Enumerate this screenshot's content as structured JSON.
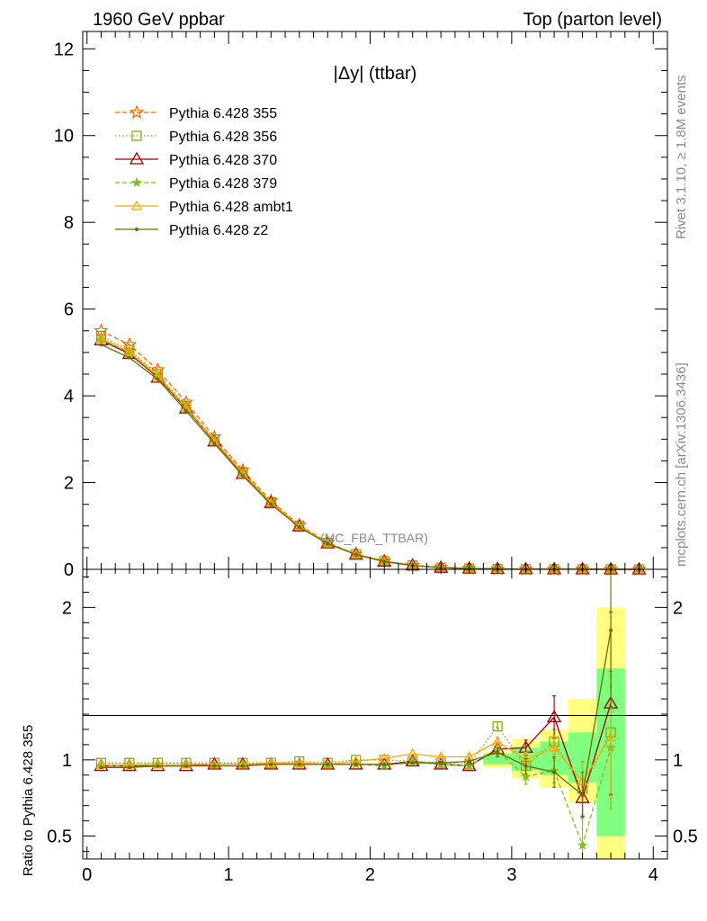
{
  "header": {
    "left": "1960 GeV ppbar",
    "right": "Top (parton level)"
  },
  "side_labels": {
    "rivet": "Rivet 3.1.10, ≥ 1.8M events",
    "mcplots": "mcplots.cern.ch [arXiv:1306.3436]"
  },
  "watermark": "(MC_FBA_TTBAR)",
  "colors": {
    "s355": "#ff6600",
    "s356": "#8ca000",
    "s370": "#9b0000",
    "s379": "#7fbf1f",
    "ambt1": "#ffa500",
    "z2": "#6b6b00",
    "band_inner": "#80ff80",
    "band_outer": "#ffff80"
  },
  "chart_data": {
    "type": "line",
    "title": "|Δy| (ttbar)",
    "xlim": [
      -0.03,
      4.1
    ],
    "x_ticks": [
      "0",
      "1",
      "2",
      "3",
      "4"
    ],
    "main": {
      "ylim": [
        0,
        12.4
      ],
      "y_ticks": [
        "0",
        "2",
        "4",
        "6",
        "8",
        "10",
        "12"
      ],
      "x": [
        0.1,
        0.3,
        0.5,
        0.7,
        0.9,
        1.1,
        1.3,
        1.5,
        1.7,
        1.9,
        2.1,
        2.3,
        2.5,
        2.7,
        2.9,
        3.1,
        3.3,
        3.5,
        3.7,
        3.9
      ],
      "series": [
        {
          "name": "Pythia 6.428 355",
          "key": "s355",
          "marker": "star",
          "dash": "5,3",
          "values": [
            5.5,
            5.18,
            4.6,
            3.85,
            3.05,
            2.28,
            1.58,
            1.02,
            0.62,
            0.35,
            0.19,
            0.09,
            0.04,
            0.02,
            0.01,
            0.005,
            0.003,
            0.002,
            0.001,
            0.0
          ]
        },
        {
          "name": "Pythia 6.428 356",
          "key": "s356",
          "marker": "square",
          "dash": "1.5,2.5",
          "values": [
            5.38,
            5.06,
            4.5,
            3.76,
            2.99,
            2.24,
            1.55,
            1.01,
            0.61,
            0.35,
            0.19,
            0.09,
            0.04,
            0.02,
            0.01,
            0.005,
            0.003,
            0.002,
            0.001,
            0.0
          ]
        },
        {
          "name": "Pythia 6.428 370",
          "key": "s370",
          "marker": "triangle",
          "dash": "",
          "values": [
            5.28,
            4.97,
            4.42,
            3.71,
            2.95,
            2.2,
            1.53,
            0.99,
            0.6,
            0.34,
            0.18,
            0.09,
            0.04,
            0.02,
            0.01,
            0.005,
            0.003,
            0.002,
            0.001,
            0.0
          ]
        },
        {
          "name": "Pythia 6.428 379",
          "key": "s379",
          "marker": "smallstar",
          "dash": "5,3",
          "values": [
            5.3,
            5.0,
            4.44,
            3.72,
            2.96,
            2.21,
            1.53,
            0.99,
            0.6,
            0.34,
            0.18,
            0.09,
            0.04,
            0.02,
            0.01,
            0.005,
            0.003,
            0.002,
            0.001,
            0.0
          ]
        },
        {
          "name": "Pythia 6.428 ambt1",
          "key": "ambt1",
          "marker": "triangle-small",
          "dash": "",
          "values": [
            5.32,
            5.02,
            4.46,
            3.74,
            2.97,
            2.22,
            1.54,
            1.0,
            0.6,
            0.35,
            0.19,
            0.09,
            0.04,
            0.02,
            0.01,
            0.005,
            0.003,
            0.002,
            0.001,
            0.0
          ]
        },
        {
          "name": "Pythia 6.428 z2",
          "key": "z2",
          "marker": "dot",
          "dash": "",
          "values": [
            5.18,
            4.88,
            4.38,
            3.65,
            2.9,
            2.16,
            1.5,
            0.97,
            0.59,
            0.34,
            0.18,
            0.09,
            0.04,
            0.02,
            0.01,
            0.005,
            0.003,
            0.002,
            0.001,
            0.0
          ]
        }
      ]
    },
    "ratio": {
      "ylabel": "Ratio to Pythia 6.428 355",
      "ylim": [
        0.35,
        2.25
      ],
      "y_ticks": [
        "0.5",
        "1",
        "2"
      ],
      "x": [
        0.1,
        0.3,
        0.5,
        0.7,
        0.9,
        1.1,
        1.3,
        1.5,
        1.7,
        1.9,
        2.1,
        2.3,
        2.5,
        2.7,
        2.9,
        3.1,
        3.3,
        3.5,
        3.7
      ],
      "band": {
        "edges": [
          2.8,
          3.0,
          3.2,
          3.4,
          3.6,
          3.8
        ],
        "inner": [
          [
            0.97,
            1.04
          ],
          [
            0.93,
            1.08
          ],
          [
            0.9,
            1.12
          ],
          [
            0.85,
            1.18
          ],
          [
            0.5,
            1.6
          ]
        ],
        "outer": [
          [
            0.95,
            1.06
          ],
          [
            0.88,
            1.14
          ],
          [
            0.82,
            1.2
          ],
          [
            0.72,
            1.4
          ],
          [
            0.33,
            2.0
          ]
        ]
      },
      "series": [
        {
          "key": "s356",
          "values": [
            0.98,
            0.98,
            0.98,
            0.98,
            0.98,
            0.98,
            0.98,
            0.99,
            0.98,
            1.0,
            1.0,
            0.99,
            0.98,
            0.97,
            1.22,
            0.96,
            1.12,
            0.81,
            1.18
          ],
          "err": [
            0,
            0,
            0,
            0,
            0,
            0,
            0,
            0,
            0,
            0,
            0,
            0,
            0.01,
            0.02,
            0.03,
            0.05,
            0.08,
            0.18,
            0.4
          ]
        },
        {
          "key": "s370",
          "values": [
            0.96,
            0.96,
            0.96,
            0.96,
            0.97,
            0.97,
            0.97,
            0.97,
            0.97,
            0.97,
            0.97,
            0.99,
            0.97,
            0.96,
            1.07,
            1.08,
            1.28,
            0.75,
            1.37
          ],
          "err": [
            0,
            0,
            0,
            0,
            0,
            0,
            0,
            0,
            0,
            0,
            0,
            0,
            0.01,
            0.02,
            0.03,
            0.05,
            0.14,
            0.12,
            0.6
          ]
        },
        {
          "key": "s379",
          "values": [
            0.96,
            0.96,
            0.97,
            0.97,
            0.97,
            0.97,
            0.97,
            0.97,
            0.97,
            0.97,
            0.96,
            0.99,
            0.97,
            0.96,
            1.06,
            0.89,
            0.93,
            0.44,
            1.08
          ],
          "err": [
            0,
            0,
            0,
            0,
            0,
            0,
            0,
            0,
            0,
            0,
            0,
            0,
            0.01,
            0.02,
            0.03,
            0.05,
            0.08,
            0.2,
            0.4
          ]
        },
        {
          "key": "ambt1",
          "values": [
            0.97,
            0.97,
            0.97,
            0.97,
            0.97,
            0.97,
            0.98,
            0.98,
            0.97,
            0.99,
            1.01,
            1.04,
            1.02,
            1.02,
            1.12,
            1.0,
            1.08,
            0.86,
            1.15
          ],
          "err": [
            0,
            0,
            0,
            0,
            0,
            0,
            0,
            0,
            0,
            0,
            0,
            0,
            0.01,
            0.02,
            0.03,
            0.05,
            0.08,
            0.12,
            0.4
          ]
        },
        {
          "key": "z2",
          "values": [
            0.95,
            0.95,
            0.96,
            0.96,
            0.96,
            0.96,
            0.97,
            0.97,
            0.97,
            0.97,
            0.97,
            0.98,
            0.98,
            0.99,
            1.05,
            0.96,
            0.92,
            0.77,
            1.85
          ],
          "err": [
            0,
            0,
            0,
            0,
            0,
            0,
            0,
            0,
            0,
            0,
            0,
            0,
            0.01,
            0.02,
            0.03,
            0.05,
            0.1,
            0.15,
            0.5
          ]
        }
      ]
    }
  }
}
